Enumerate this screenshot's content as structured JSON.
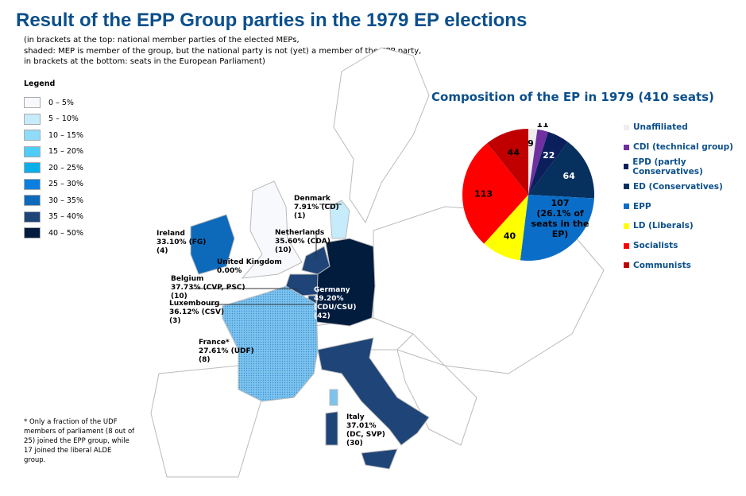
{
  "title": "Result of the EPP Group parties in the 1979 EP elections",
  "subtitle": [
    "(in brackets at the top: national member parties of the elected MEPs,",
    "shaded: MEP is member of the group, but the national party is not (yet) a member of the EPP party,",
    "in brackets at the bottom: seats in the European Parliament)"
  ],
  "legend": {
    "title": "Legend",
    "items": [
      {
        "label": "0 – 5%",
        "color": "#f7f9fd"
      },
      {
        "label": "5 – 10%",
        "color": "#c6ecfb"
      },
      {
        "label": "10 – 15%",
        "color": "#8fdcfa"
      },
      {
        "label": "15 – 20%",
        "color": "#4fcdf7"
      },
      {
        "label": "20 – 25%",
        "color": "#0aaee8"
      },
      {
        "label": "25 – 30%",
        "color": "#0a7fe0"
      },
      {
        "label": "30 – 35%",
        "color": "#0d6abb"
      },
      {
        "label": "35 – 40%",
        "color": "#1e4478"
      },
      {
        "label": "40 – 50%",
        "color": "#021c3d"
      }
    ]
  },
  "countries": [
    {
      "name": "Ireland",
      "result": "33.10% (FG)",
      "seats": "(4)"
    },
    {
      "name": "United Kingdom",
      "result": "0.00%",
      "seats": ""
    },
    {
      "name": "Denmark",
      "result": "7.91% (CD)",
      "seats": "(1)"
    },
    {
      "name": "Netherlands",
      "result": "35.60% (CDA)",
      "seats": "(10)"
    },
    {
      "name": "Belgium",
      "result": "37.73% (CVP, PSC)",
      "seats": "(10)"
    },
    {
      "name": "Luxembourg",
      "result": "36.12% (CSV)",
      "seats": "(3)"
    },
    {
      "name": "Germany",
      "result": "49.20%",
      "result2": "(CDU/CSU)",
      "seats": "(42)"
    },
    {
      "name": "France*",
      "result": "27.61% (UDF)",
      "seats": "(8)"
    },
    {
      "name": "Italy",
      "result": "37.01%",
      "result2": "(DC, SVP)",
      "seats": "(30)"
    }
  ],
  "footnote": "* Only a fraction of the UDF members of parliament (8 out of 25) joined the EPP group, while 17 joined the liberal ALDE group.",
  "chart_data": {
    "type": "pie",
    "title": "Composition of the EP in 1979 (410 seats)",
    "total": 410,
    "slices": [
      {
        "name": "Unaffiliated",
        "value": 9,
        "label": "9",
        "color": "#eeeeee"
      },
      {
        "name": "CDI (technical group)",
        "value": 11,
        "label": "11",
        "color": "#7030a0"
      },
      {
        "name": "EPD (partly Conservatives)",
        "value": 22,
        "label": "22",
        "color": "#0b1f5c"
      },
      {
        "name": "ED (Conservatives)",
        "value": 64,
        "label": "64",
        "color": "#06305e"
      },
      {
        "name": "EPP",
        "value": 107,
        "label": "107",
        "note": [
          "(26.1% of",
          "seats in the",
          "EP)"
        ],
        "color": "#0a6ec8"
      },
      {
        "name": "LD (Liberals)",
        "value": 40,
        "label": "40",
        "color": "#ffff00"
      },
      {
        "name": "Socialists",
        "value": 113,
        "label": "113",
        "color": "#ff0000"
      },
      {
        "name": "Communists",
        "value": 44,
        "label": "44",
        "color": "#c00000"
      }
    ]
  }
}
